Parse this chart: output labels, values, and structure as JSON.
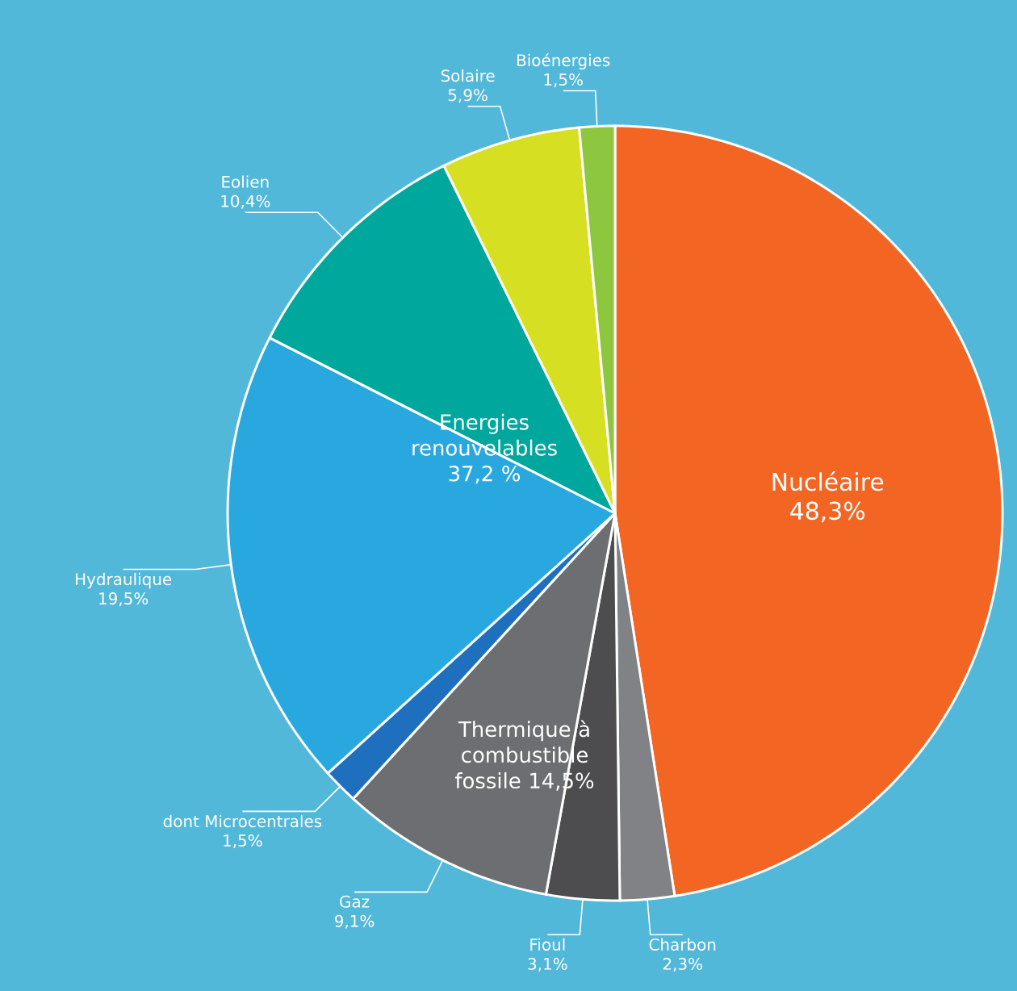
{
  "chart_data": {
    "type": "pie",
    "categories": [
      "Nucléaire",
      "Charbon",
      "Fioul",
      "Gaz",
      "dont Microcentrales",
      "Hydraulique",
      "Eolien",
      "Solaire",
      "Bioénergies"
    ],
    "values": [
      48.3,
      2.3,
      3.1,
      9.1,
      1.5,
      19.5,
      10.4,
      5.9,
      1.5
    ],
    "colors": [
      "#f26522",
      "#808285",
      "#4d4d4f",
      "#6d6e71",
      "#1f6fbf",
      "#29a8e0",
      "#00a79d",
      "#d7df23",
      "#8dc63f"
    ],
    "value_labels": [
      "48,3%",
      "2,3%",
      "3,1%",
      "9,1%",
      "1,5%",
      "19,5%",
      "10,4%",
      "5,9%",
      "1,5%"
    ],
    "annotations": [
      "Energies renouvelables 37,2 %",
      "Thermique à combustible fossile 14,5%"
    ]
  }
}
